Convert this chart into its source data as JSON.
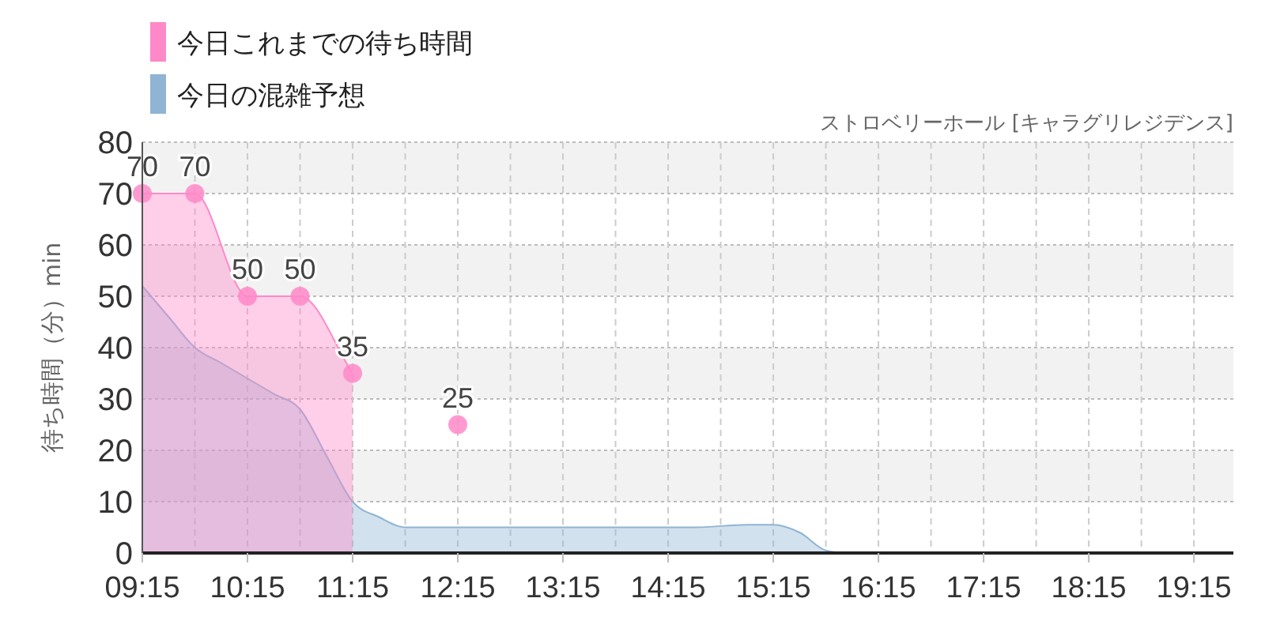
{
  "chart_data": {
    "type": "area",
    "subtitle": "ストロベリーホール [キャラグリレジデンス]",
    "ylabel": "待ち時間（分）min",
    "xlim": [
      9.25,
      19.625
    ],
    "ylim": [
      0,
      80
    ],
    "yticks": [
      0,
      10,
      20,
      30,
      40,
      50,
      60,
      70,
      80
    ],
    "xticks": [
      {
        "value": 9.25,
        "label": "09:15"
      },
      {
        "value": 9.75,
        "label": null
      },
      {
        "value": 10.25,
        "label": "10:15"
      },
      {
        "value": 10.75,
        "label": null
      },
      {
        "value": 11.25,
        "label": "11:15"
      },
      {
        "value": 11.75,
        "label": null
      },
      {
        "value": 12.25,
        "label": "12:15"
      },
      {
        "value": 12.75,
        "label": null
      },
      {
        "value": 13.25,
        "label": "13:15"
      },
      {
        "value": 13.75,
        "label": null
      },
      {
        "value": 14.25,
        "label": "14:15"
      },
      {
        "value": 14.75,
        "label": null
      },
      {
        "value": 15.25,
        "label": "15:15"
      },
      {
        "value": 15.75,
        "label": null
      },
      {
        "value": 16.25,
        "label": "16:15"
      },
      {
        "value": 16.75,
        "label": null
      },
      {
        "value": 17.25,
        "label": "17:15"
      },
      {
        "value": 17.75,
        "label": null
      },
      {
        "value": 18.25,
        "label": "18:15"
      },
      {
        "value": 18.75,
        "label": null
      },
      {
        "value": 19.25,
        "label": "19:15"
      }
    ],
    "grid": true,
    "legend": "top left",
    "series": [
      {
        "name": "今日これまでの待ち時間",
        "color": "#ff88c8",
        "marker": "circle",
        "x": [
          9.25,
          9.75,
          10.25,
          10.75,
          11.25
        ],
        "values": [
          70,
          70,
          50,
          50,
          35
        ],
        "value_labels": [
          "70",
          "70",
          "50",
          "50",
          "35"
        ]
      },
      {
        "type": "scatter",
        "color": "#ff88c8",
        "x": [
          12.25
        ],
        "values": [
          25
        ],
        "value_labels": [
          "25"
        ]
      },
      {
        "name": "今日の混雑予想",
        "color": "#8fb4d4",
        "marker": "none",
        "x": [
          9.25,
          9.5,
          9.75,
          10.0,
          10.25,
          10.5,
          10.75,
          11.0,
          11.25,
          11.5,
          11.75,
          12.0,
          12.5,
          13.0,
          13.5,
          14.0,
          14.5,
          15.0,
          15.25,
          15.5,
          15.75,
          16.0,
          17.0,
          18.0,
          19.0,
          19.625
        ],
        "values": [
          52,
          46,
          40,
          37,
          34,
          31,
          28,
          19,
          10,
          7,
          5,
          5,
          5,
          5,
          5,
          5,
          5,
          5.5,
          5.5,
          4,
          0.5,
          0,
          0,
          0,
          0,
          0
        ]
      }
    ]
  }
}
